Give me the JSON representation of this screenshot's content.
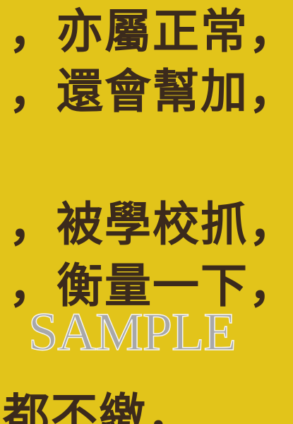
{
  "lines": [
    "，亦屬正常，",
    "，還會幫加，",
    "，被學校抓，",
    "，衡量一下，",
    "都不繳，"
  ],
  "watermark": "SAMPLE"
}
